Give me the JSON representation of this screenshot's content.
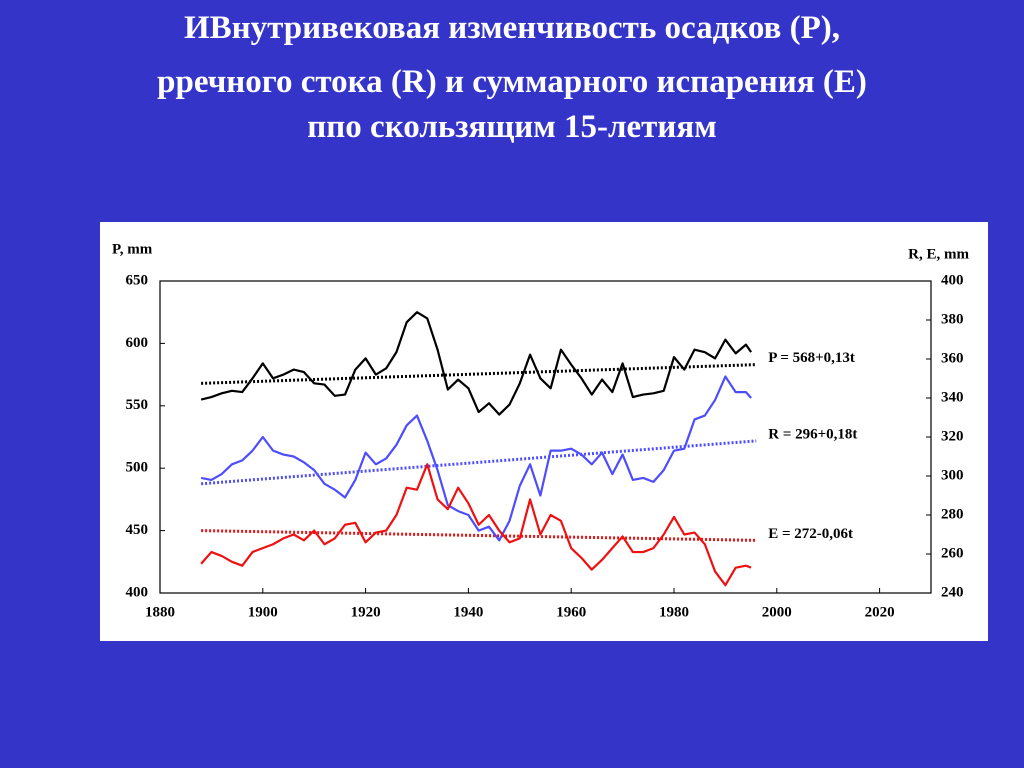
{
  "chart_data": {
    "type": "line",
    "title": [
      "ИВнутривековая изменчивость осадков (Р),",
      "рречного стока (R) и суммарного испарения (Е)",
      "ппо скользящим 15-летиям"
    ],
    "y_label": "P, mm",
    "y2_label": "R, E, mm",
    "x": [
      1888,
      1890,
      1892,
      1894,
      1896,
      1898,
      1900,
      1902,
      1904,
      1906,
      1908,
      1910,
      1912,
      1914,
      1916,
      1918,
      1920,
      1922,
      1924,
      1926,
      1928,
      1930,
      1932,
      1934,
      1936,
      1938,
      1940,
      1942,
      1944,
      1946,
      1948,
      1950,
      1952,
      1954,
      1956,
      1958,
      1960,
      1962,
      1964,
      1966,
      1968,
      1970,
      1972,
      1974,
      1976,
      1978,
      1980,
      1982,
      1984,
      1986,
      1988,
      1990,
      1992,
      1994,
      1995
    ],
    "xlim": [
      1880,
      2030
    ],
    "xticks": [
      1880,
      1900,
      1920,
      1940,
      1960,
      1980,
      2000,
      2020
    ],
    "ylim": [
      400,
      650
    ],
    "yticks": [
      400,
      450,
      500,
      550,
      600,
      650
    ],
    "y2lim": [
      240,
      400
    ],
    "y2ticks": [
      240,
      260,
      280,
      300,
      320,
      340,
      360,
      380,
      400
    ],
    "series": [
      {
        "color": "#000000",
        "axis": "y",
        "values": [
          555,
          557,
          560,
          562,
          561,
          572,
          584,
          572,
          575,
          579,
          577,
          568,
          567,
          558,
          559,
          579,
          588,
          575,
          580,
          593,
          617,
          625,
          620,
          595,
          563,
          571,
          564,
          545,
          552,
          543,
          551,
          568,
          591,
          572,
          564,
          595,
          583,
          572,
          559,
          571,
          561,
          584,
          557,
          559,
          560,
          562,
          589,
          579,
          595,
          593,
          588,
          603,
          592,
          599,
          593
        ]
      },
      {
        "color": "#4d4dff",
        "axis": "y2",
        "values": [
          299,
          298,
          301,
          306,
          308,
          313,
          320,
          313,
          311,
          310,
          307,
          303,
          296,
          293,
          289,
          298,
          312,
          306,
          309,
          316,
          326,
          331,
          318,
          303,
          285,
          282,
          280,
          272,
          274,
          267,
          277,
          295,
          306,
          290,
          313,
          313,
          314,
          311,
          306,
          312,
          301,
          311,
          298,
          299,
          297,
          303,
          313,
          314,
          329,
          331,
          339,
          351,
          343,
          343,
          340
        ]
      },
      {
        "color": "#ee1111",
        "axis": "y2",
        "values": [
          255,
          261,
          259,
          256,
          254,
          261,
          263,
          265,
          268,
          270,
          267,
          272,
          265,
          268,
          275,
          276,
          266,
          271,
          272,
          280,
          294,
          293,
          306,
          288,
          283,
          294,
          286,
          275,
          280,
          272,
          266,
          268,
          288,
          270,
          280,
          277,
          263,
          258,
          252,
          257,
          263,
          269,
          261,
          261,
          263,
          270,
          279,
          270,
          271,
          265,
          251,
          244,
          253,
          254,
          253
        ]
      }
    ],
    "trends": [
      {
        "label": "P = 568+0,13t",
        "color": "#000000",
        "axis": "y",
        "x": [
          1888,
          1996
        ],
        "values": [
          568,
          583
        ]
      },
      {
        "label": "R = 296+0,18t",
        "color": "#4d4dff",
        "axis": "y2",
        "x": [
          1888,
          1996
        ],
        "values": [
          296,
          318
        ]
      },
      {
        "label": "E = 272-0,06t",
        "color": "#ee1111",
        "axis": "y2",
        "x": [
          1888,
          1996
        ],
        "values": [
          272,
          267
        ]
      }
    ]
  }
}
